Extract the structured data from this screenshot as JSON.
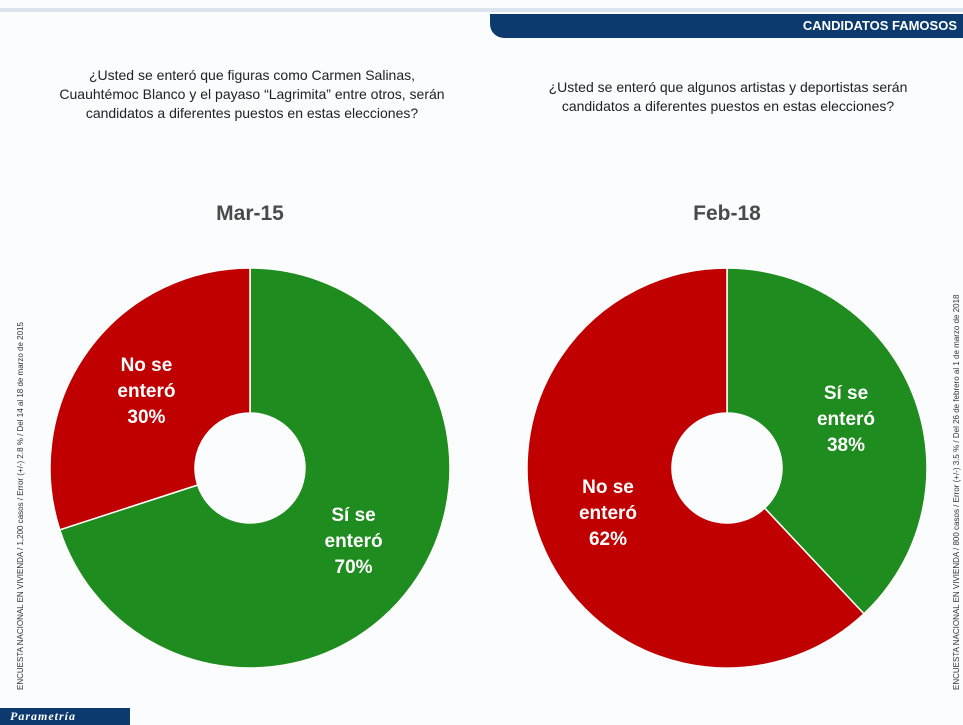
{
  "header": {
    "title": "CANDIDATOS FAMOSOS"
  },
  "footer": {
    "brand": "Parametría"
  },
  "side_notes": [
    "ENCUESTA NACIONAL EN VIVIENDA / 1,200 casos / Error (+/-) 2.8 % / Del 14 al 18 de marzo de 2015",
    "ENCUESTA NACIONAL EN VIVIENDA / 800 casos / Error (+/-) 3.5 % / Del 26 de febrero al 1 de marzo de 2018"
  ],
  "chart_data": [
    {
      "type": "pie",
      "donut": true,
      "subtitle": "¿Usted se enteró que figuras como Carmen Salinas, Cuauhtémoc Blanco y el payaso “Lagrimita” entre otros, serán candidatos a diferentes puestos en estas elecciones?",
      "title": "Mar-15",
      "categories": [
        "Sí se enteró",
        "No se enteró"
      ],
      "values": [
        70,
        30
      ],
      "value_labels": [
        "70%",
        "30%"
      ],
      "colors": [
        "#1e8c1e",
        "#c00000"
      ]
    },
    {
      "type": "pie",
      "donut": true,
      "subtitle": "¿Usted se enteró que algunos artistas y deportistas serán candidatos a diferentes puestos en estas elecciones?",
      "title": "Feb-18",
      "categories": [
        "Sí se enteró",
        "No se enteró"
      ],
      "values": [
        38,
        62
      ],
      "value_labels": [
        "38%",
        "62%"
      ],
      "colors": [
        "#1e8c1e",
        "#c00000"
      ]
    }
  ]
}
